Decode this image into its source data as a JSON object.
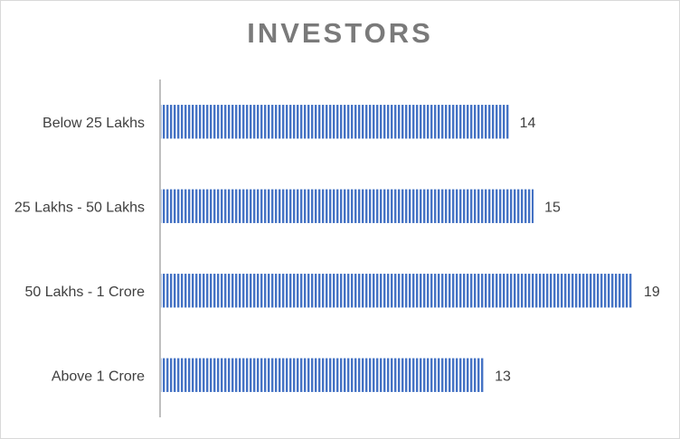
{
  "chart_data": {
    "type": "bar",
    "orientation": "horizontal",
    "title": "INVESTORS",
    "categories": [
      "Below 25 Lakhs",
      "25 Lakhs - 50 Lakhs",
      "50 Lakhs - 1 Crore",
      "Above 1 Crore"
    ],
    "values": [
      14,
      15,
      19,
      13
    ],
    "xlim": [
      0,
      19
    ],
    "grid": false,
    "legend": "none",
    "data_labels": true,
    "bar_color": "#4472c4",
    "bar_pattern": "vertical-stripes"
  }
}
